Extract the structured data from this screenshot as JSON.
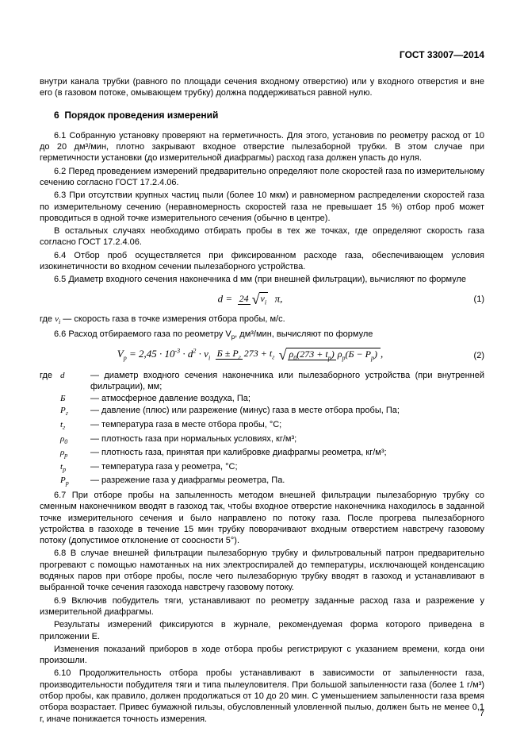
{
  "header": "ГОСТ 33007—2014",
  "intro": "внутри канала трубки (равного по площади сечения входному отверстию) или у входного отверстия и вне его (в газовом потоке, омывающем трубку) должна поддерживаться равной нулю.",
  "section_num": "6",
  "section_title": "Порядок проведения измерений",
  "p61": "6.1 Собранную установку проверяют на герметичность. Для этого, установив по реометру расход от 10 до 20 дм³/мин, плотно закрывают входное отверстие пылезаборной трубки. В этом случае при герметичности установки (до измерительной диафрагмы) расход газа должен упасть до нуля.",
  "p62": "6.2 Перед проведением измерений предварительно определяют поле скоростей газа по измерительному сечению согласно ГОСТ 17.2.4.06.",
  "p63a": "6.3 При отсутствии крупных частиц пыли (более 10 мкм) и равномерном распределении скоростей газа по измерительному сечению (неравномерность скоростей газа не превышает 15 %) отбор проб может проводиться в одной точке измерительного сечения (обычно в центре).",
  "p63b": "В остальных случаях необходимо отбирать пробы в тех же точках, где определяют скорость газа согласно ГОСТ 17.2.4.06.",
  "p64": "6.4 Отбор проб осуществляется при фиксированном расходе газа, обеспечивающем условия изокинетичности во входном сечении пылезаборного устройства.",
  "p65": "6.5 Диаметр входного сечения наконечника d мм (при внешней фильтрации), вычисляют по формуле",
  "eq1_num": "(1)",
  "p65_where_pre": "где ",
  "p65_where_sym": "v",
  "p65_where_sub": "i",
  "p65_where": " — скорость газа в точке измерения отбора пробы, м/с.",
  "p66": "6.6 Расход отбираемого газа по реометру V",
  "p66_sub": "р",
  "p66_tail": ", дм³/мин, вычисляют по формуле",
  "eq2_num": "(2)",
  "defs_intro": "где ",
  "defs": [
    {
      "sym": "d",
      "text": " — диаметр входного сечения наконечника или пылезаборного устройства (при внутренней фильтрации), мм;"
    },
    {
      "sym": "Б",
      "text": " — атмосферное давление воздуха, Па;"
    },
    {
      "sym": "P",
      "sub": "г",
      "text": " — давление (плюс) или разрежение (минус) газа в месте отбора пробы, Па;"
    },
    {
      "sym": "t",
      "sub": "г",
      "text": " — температура газа в месте отбора пробы, °С;"
    },
    {
      "sym": "ρ",
      "sub": "0",
      "text": " — плотность газа при нормальных условиях, кг/м³;"
    },
    {
      "sym": "ρ",
      "sub": "р",
      "text": " — плотность газа, принятая при калибровке диафрагмы реометра, кг/м³;"
    },
    {
      "sym": "t",
      "sub": "р",
      "text": " — температура газа у реометра, °С;"
    },
    {
      "sym": "P",
      "sub": "р",
      "text": " — разрежение газа у диафрагмы реометра, Па."
    }
  ],
  "p67": "6.7 При отборе пробы на запыленность методом внешней фильтрации пылезаборную трубку со сменным наконечником вводят в газоход так, чтобы входное отверстие наконечника находилось в заданной точке измерительного сечения и было направлено по потоку газа. После прогрева пылезаборного устройства в газоходе в течение 15 мин трубку поворачивают входным отверстием навстречу газовому потоку (допустимое отклонение от соосности 5°).",
  "p68": "6.8 В случае внешней фильтрации пылезаборную трубку и фильтровальный патрон предварительно прогревают с помощью намотанных на них электроспиралей до температуры, исключающей конденсацию водяных паров при отборе пробы, после чего пылезаборную трубку вводят в газоход и устанавливают в выбранной точке сечения газохода навстречу газовому потоку.",
  "p69": "6.9 Включив побудитель тяги, устанавливают по реометру заданные расход газа и разрежение у измерительной диафрагмы.",
  "p69a": "Результаты измерений фиксируются в журнале, рекомендуемая форма которого приведена в приложении Е.",
  "p69b": "Изменения показаний приборов в ходе отбора пробы регистрируют с указанием времени, когда они произошли.",
  "p610": "6.10 Продолжительность отбора пробы устанавливают в зависимости от запыленности газа, производительности побудителя тяги и типа пылеуловителя. При большой запыленности газа (более 1 г/м³) отбор пробы, как правило, должен продолжаться от 10 до 20 мин. С уменьшением запыленности газа время отбора возрастает. Привес бумажной гильзы, обусловленный уловленной пылью, должен быть не менее 0,1 г, иначе понижается точность измерения.",
  "page_number": "7"
}
